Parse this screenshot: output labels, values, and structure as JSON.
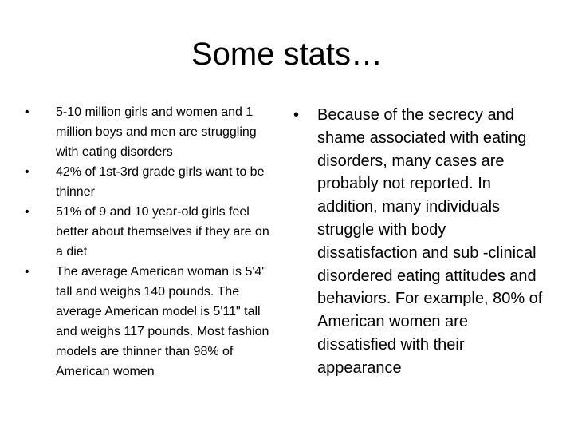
{
  "title": "Some stats…",
  "bullet_glyph": "•",
  "left_column": {
    "items": [
      "5-10 million girls and women and 1 million boys and men are struggling with eating disorders",
      "42% of 1st-3rd grade girls want to be thinner",
      "51% of 9 and 10 year-old girls feel better about themselves if they are on a diet",
      "The average American woman is 5'4\" tall and weighs 140 pounds. The average American model is 5'11\" tall and weighs 117 pounds. Most fashion models are thinner than 98% of American women"
    ]
  },
  "right_column": {
    "items": [
      "Because of the secrecy and shame associated with eating disorders, many cases are probably not reported. In addition, many individuals struggle with body dissatisfaction and sub -clinical disordered eating attitudes and behaviors. For example, 80% of American women are dissatisfied with their appearance"
    ]
  }
}
